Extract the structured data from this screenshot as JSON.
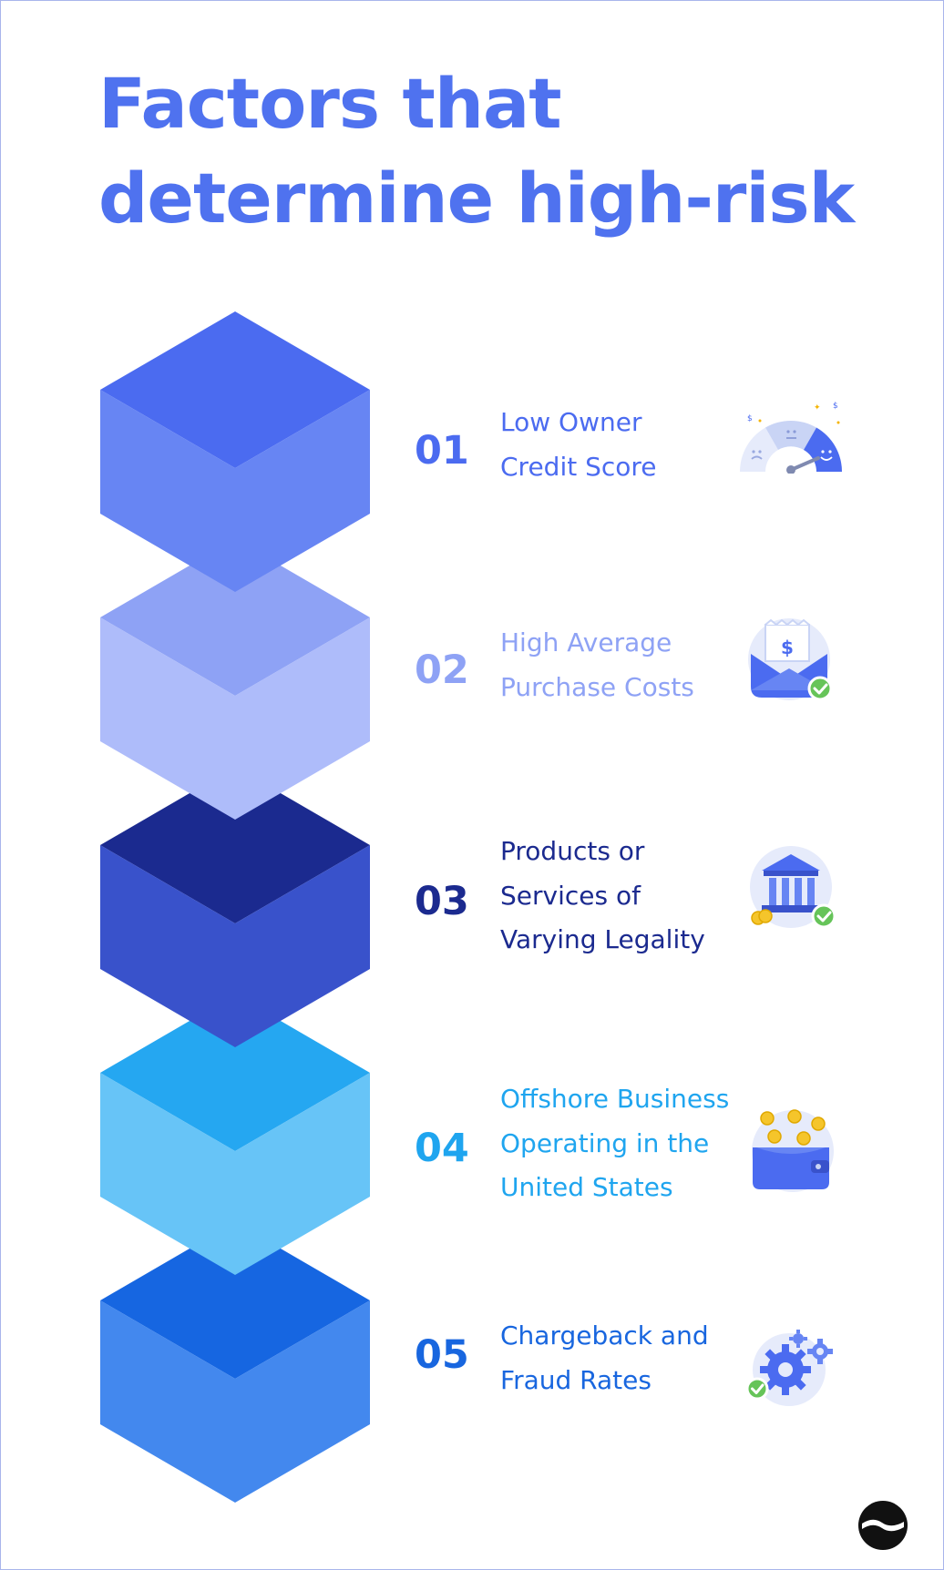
{
  "title": {
    "line1": "Factors that",
    "line2": "determine high-risk"
  },
  "factors": [
    {
      "number": "01",
      "lines": [
        "Low Owner",
        "Credit Score"
      ],
      "color": "#4b6bf0",
      "icon": "credit-score-gauge-icon"
    },
    {
      "number": "02",
      "lines": [
        "High Average",
        "Purchase Costs"
      ],
      "color": "#8ea2f5",
      "icon": "invoice-envelope-icon"
    },
    {
      "number": "03",
      "lines": [
        "Products or",
        "Services of",
        "Varying Legality"
      ],
      "color": "#1b2a8f",
      "icon": "bank-building-icon"
    },
    {
      "number": "04",
      "lines": [
        "Offshore Business",
        "Operating in the",
        "United States"
      ],
      "color": "#1fa5ef",
      "icon": "wallet-coins-icon"
    },
    {
      "number": "05",
      "lines": [
        "Chargeback and",
        "Fraud Rates"
      ],
      "color": "#1866df",
      "icon": "settings-gears-icon"
    }
  ],
  "colors": {
    "title": "#4f72ef",
    "border": "#a9b5ec",
    "cube1": [
      "#4b6bf0",
      "#6785f3"
    ],
    "cube2": [
      "#8ea2f5",
      "#aebcfa"
    ],
    "cube3": [
      "#1b2a8f",
      "#3952cb"
    ],
    "cube4": [
      "#25a7f1",
      "#67c4f7"
    ],
    "cube5": [
      "#1666e1",
      "#4388ee"
    ]
  },
  "brand_logo": "brand-logo-icon"
}
